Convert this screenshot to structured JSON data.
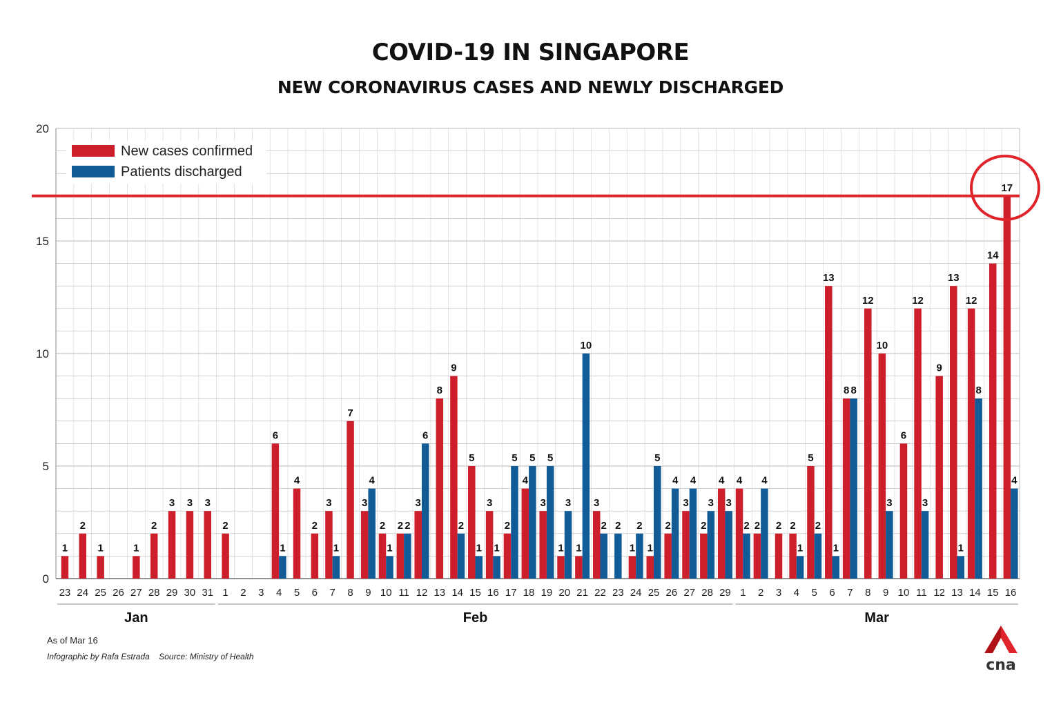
{
  "title": "COVID-19 IN SINGAPORE",
  "subtitle": "NEW CORONAVIRUS CASES AND NEWLY DISCHARGED",
  "footnote": "As of Mar 16",
  "credit": "Infographic by Rafa Estrada",
  "source": "Source: Ministry of Health",
  "logo_text": "cna",
  "colors": {
    "new_cases": "#cc1f2b",
    "discharged": "#115b96",
    "highlight": "#e0242c"
  },
  "chart_data": {
    "type": "bar",
    "title": "COVID-19 IN SINGAPORE",
    "subtitle": "NEW CORONAVIRUS CASES AND NEWLY DISCHARGED",
    "ylim": [
      0,
      20
    ],
    "yticks": [
      0,
      5,
      10,
      15,
      20
    ],
    "grid": true,
    "legend_position": "top-left",
    "categories": [
      "23",
      "24",
      "25",
      "26",
      "27",
      "28",
      "29",
      "30",
      "31",
      "1",
      "2",
      "3",
      "4",
      "5",
      "6",
      "7",
      "8",
      "9",
      "10",
      "11",
      "12",
      "13",
      "14",
      "15",
      "16",
      "17",
      "18",
      "19",
      "20",
      "21",
      "22",
      "23",
      "24",
      "25",
      "26",
      "27",
      "28",
      "29",
      "1",
      "2",
      "3",
      "4",
      "5",
      "6",
      "7",
      "8",
      "9",
      "10",
      "11",
      "12",
      "13",
      "14",
      "15",
      "16"
    ],
    "month_groups": [
      {
        "label": "Jan",
        "start": 0,
        "end": 8
      },
      {
        "label": "Feb",
        "start": 9,
        "end": 37
      },
      {
        "label": "Mar",
        "start": 38,
        "end": 53
      }
    ],
    "series": [
      {
        "name": "New cases confirmed",
        "color": "#cc1f2b",
        "values": [
          1,
          2,
          1,
          0,
          1,
          2,
          3,
          3,
          3,
          2,
          0,
          0,
          6,
          4,
          2,
          3,
          7,
          3,
          2,
          2,
          3,
          8,
          9,
          5,
          3,
          2,
          4,
          3,
          1,
          1,
          3,
          0,
          1,
          1,
          2,
          3,
          2,
          4,
          4,
          2,
          2,
          2,
          5,
          13,
          8,
          12,
          10,
          6,
          12,
          9,
          13,
          12,
          14,
          17
        ]
      },
      {
        "name": "Patients discharged",
        "color": "#115b96",
        "values": [
          0,
          0,
          0,
          0,
          0,
          0,
          0,
          0,
          0,
          0,
          0,
          0,
          1,
          0,
          0,
          1,
          0,
          4,
          1,
          2,
          6,
          0,
          2,
          1,
          1,
          5,
          5,
          5,
          3,
          10,
          2,
          2,
          2,
          5,
          4,
          4,
          3,
          3,
          2,
          4,
          0,
          1,
          2,
          1,
          8,
          0,
          3,
          0,
          3,
          0,
          1,
          8,
          0,
          4
        ]
      }
    ],
    "highlight": {
      "value": 17,
      "label": "17"
    }
  }
}
